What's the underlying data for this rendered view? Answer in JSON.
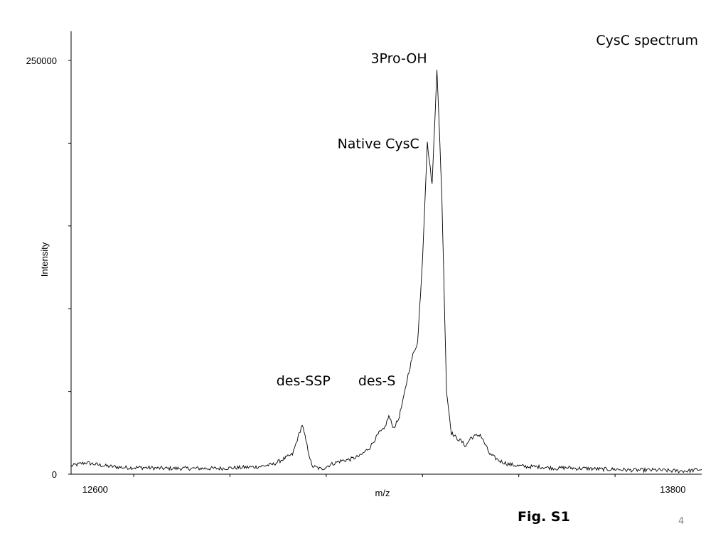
{
  "chart_data": {
    "type": "line",
    "title": "CysC spectrum",
    "xlabel": "m/z",
    "ylabel": "Intensity",
    "xlim": [
      12550,
      13860
    ],
    "ylim": [
      0,
      250000
    ],
    "xticks": [
      12600,
      13800
    ],
    "yticks": [
      0,
      250000
    ],
    "grid": false,
    "series": [
      {
        "values_x": [
          12550,
          12580,
          12620,
          12660,
          12700,
          12740,
          12780,
          12820,
          12860,
          12900,
          12940,
          12970,
          12990,
          13010,
          13030,
          13050,
          13070,
          13090,
          13110,
          13130,
          13150,
          13170,
          13190,
          13200,
          13210,
          13220,
          13230,
          13240,
          13250,
          13260,
          13270,
          13280,
          13290,
          13300,
          13310,
          13320,
          13330,
          13340,
          13350,
          13360,
          13370,
          13380,
          13390,
          13400,
          13410,
          13420,
          13440,
          13460,
          13480,
          13500,
          13520,
          13540,
          13560,
          13580,
          13600,
          13620,
          13650,
          13680,
          13710,
          13740,
          13770,
          13800,
          13830,
          13860
        ],
        "values_y": [
          5000,
          7000,
          5000,
          4000,
          4000,
          3500,
          3500,
          3500,
          3500,
          4000,
          4500,
          6000,
          9000,
          12000,
          30000,
          5000,
          3000,
          6000,
          8000,
          9000,
          11000,
          16000,
          25000,
          27000,
          35000,
          28000,
          33000,
          45000,
          60000,
          72000,
          80000,
          130000,
          200000,
          175000,
          245000,
          170000,
          50000,
          25000,
          22000,
          20000,
          17000,
          22000,
          23000,
          24000,
          18000,
          12000,
          8000,
          6000,
          5000,
          4500,
          4500,
          4000,
          3500,
          4000,
          3500,
          3500,
          3000,
          3000,
          2500,
          2500,
          2500,
          2000,
          2000,
          3000
        ]
      }
    ],
    "annotations": [
      {
        "text": "3Pro-OH",
        "x": 13316,
        "y": 245000
      },
      {
        "text": "Native CysC",
        "x": 13300,
        "y": 200000
      },
      {
        "text": "des-SSP",
        "x": 13040,
        "y": 45000
      },
      {
        "text": "des-S",
        "x": 13200,
        "y": 45000
      }
    ]
  },
  "figure": {
    "label": "Fig. S1",
    "page_number": "4"
  }
}
